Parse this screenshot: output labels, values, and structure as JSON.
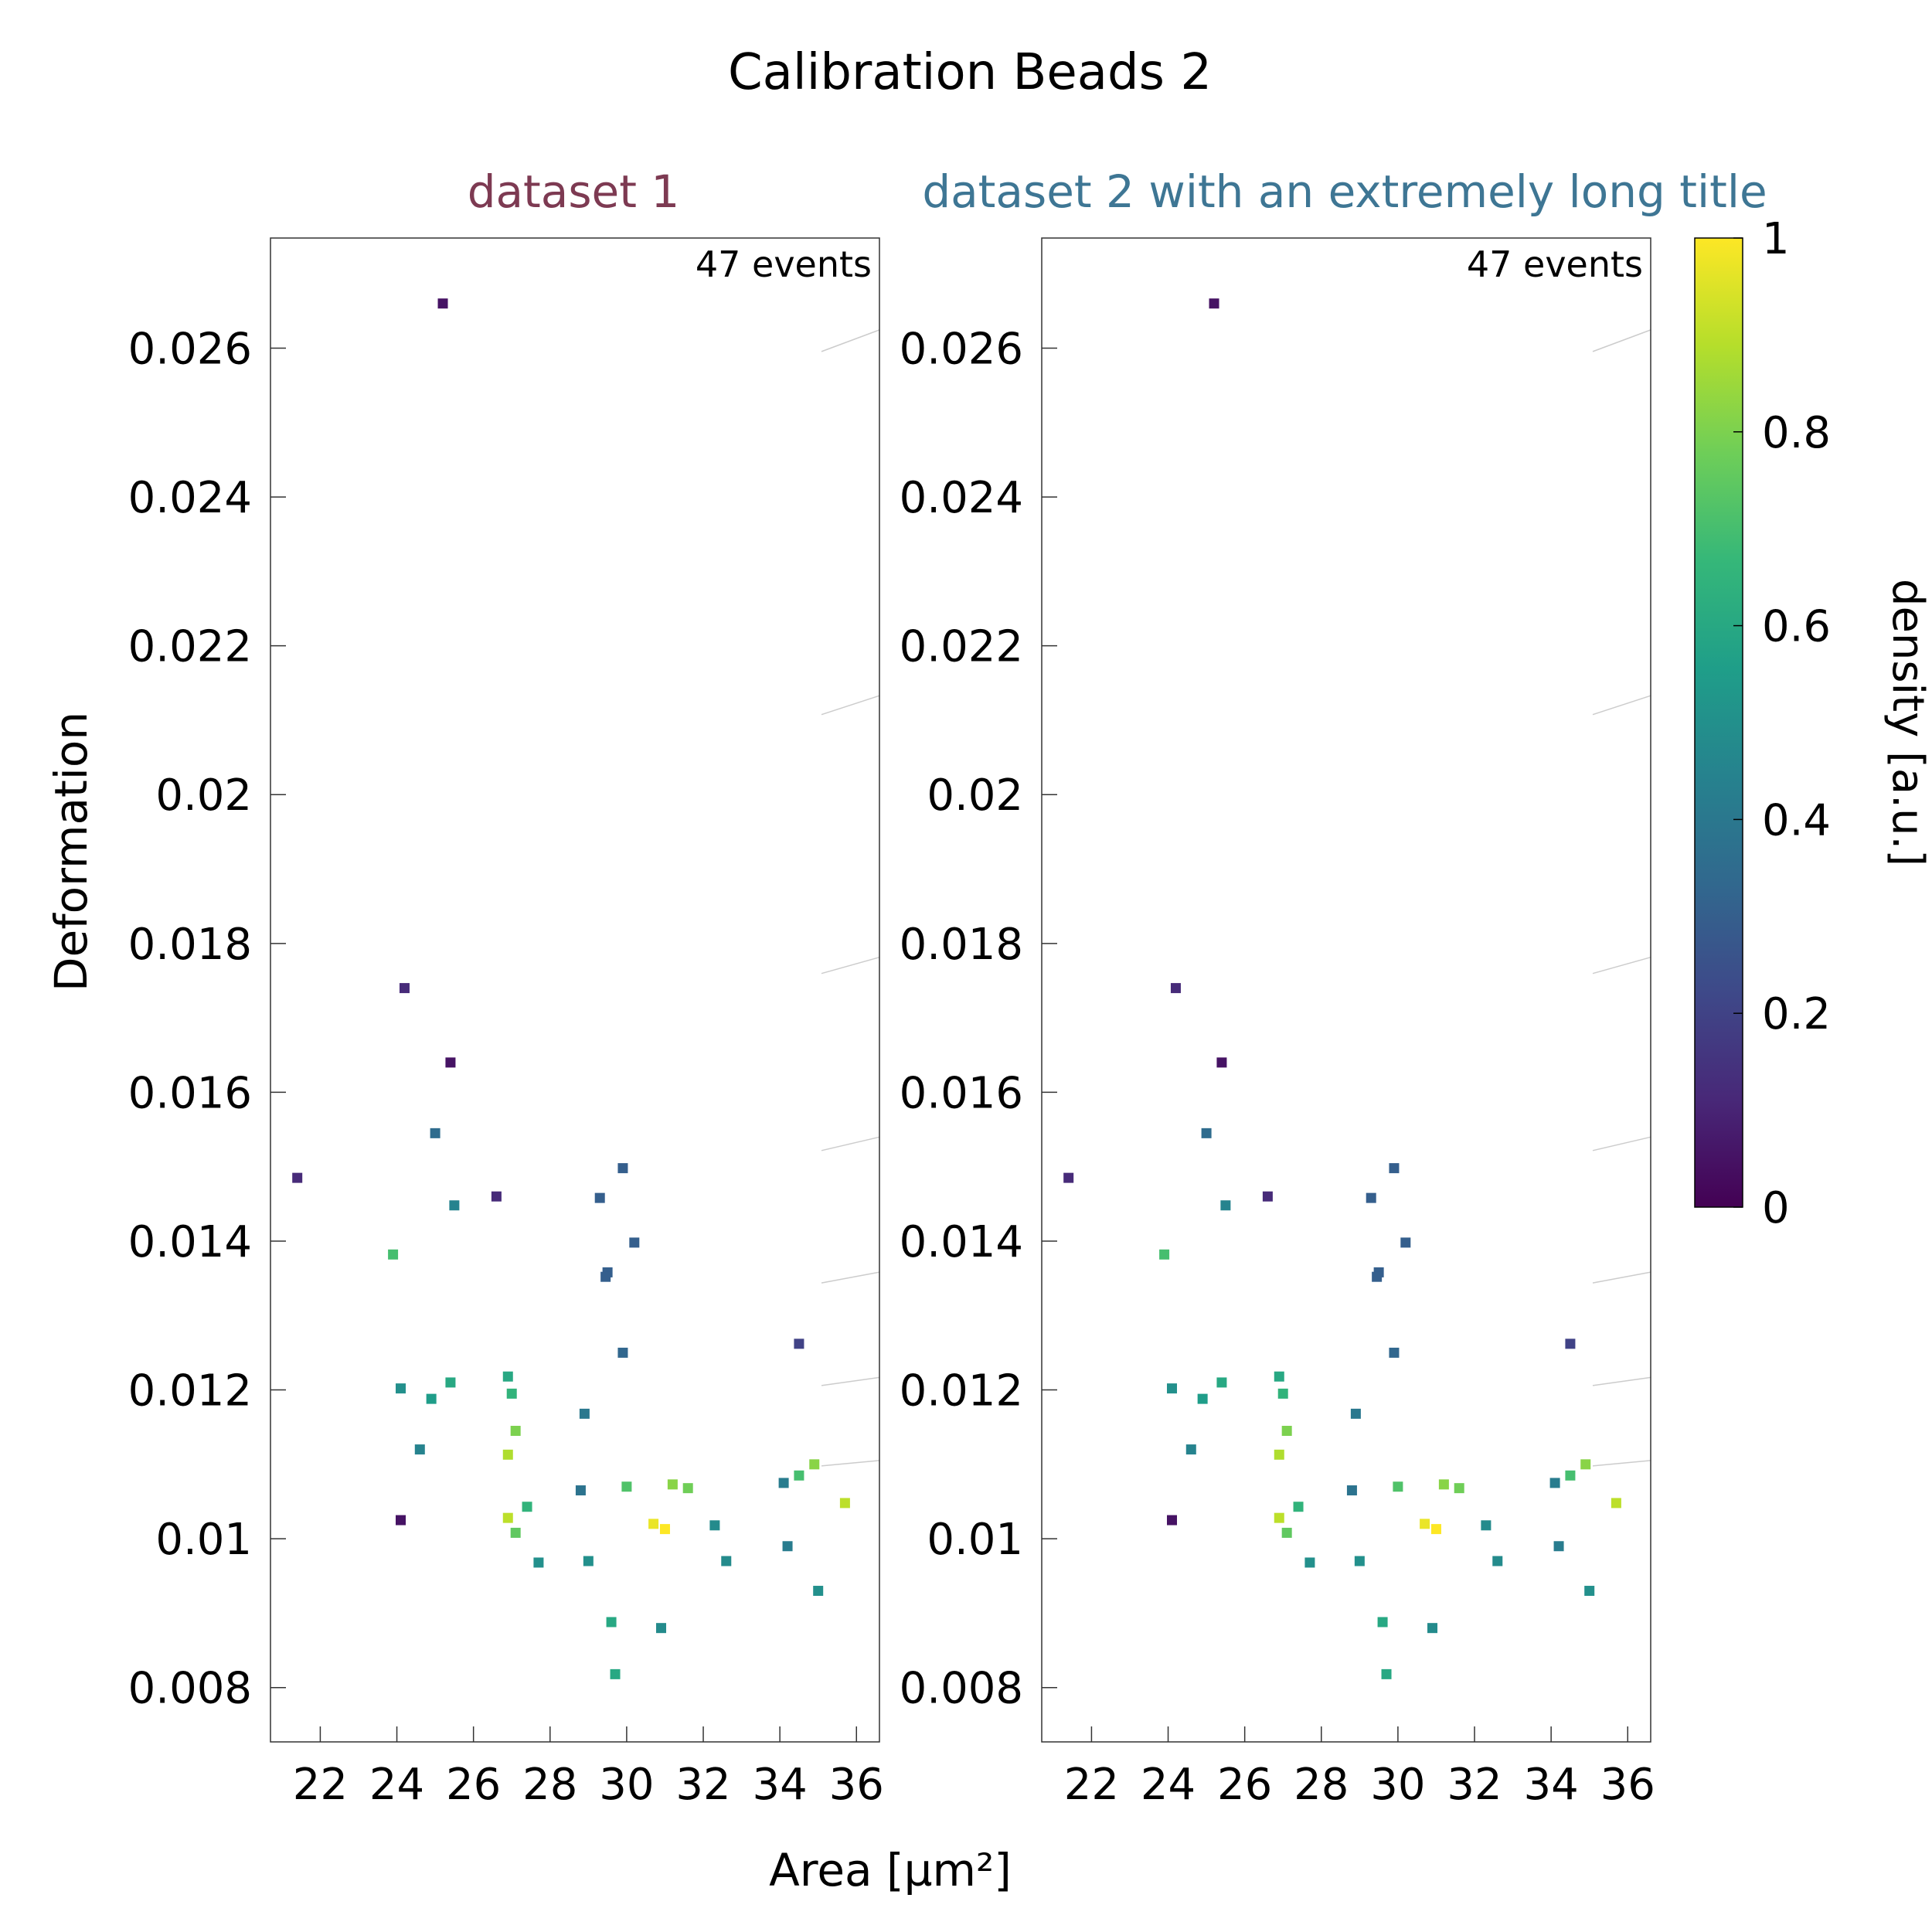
{
  "figure": {
    "title": "Calibration Beads 2",
    "xlabel": "Area [µm²]",
    "ylabel": "Deformation",
    "colorbar": {
      "label": "density [a.u.]",
      "ticks": [
        "0",
        "0.2",
        "0.4",
        "0.6",
        "0.8",
        "1"
      ],
      "colormap": [
        "#440154",
        "#482878",
        "#3e4989",
        "#31688e",
        "#26828e",
        "#1f9e89",
        "#35b779",
        "#6ece58",
        "#b5de2b",
        "#fde725"
      ]
    }
  },
  "chart_data": [
    {
      "type": "scatter",
      "title": "dataset 1",
      "title_color": "#7d3a52",
      "annotation": "47 events",
      "xlim": [
        20.7,
        36.6
      ],
      "ylim": [
        0.00727,
        0.02748
      ],
      "xticks": [
        "22",
        "24",
        "26",
        "28",
        "30",
        "32",
        "34",
        "36"
      ],
      "yticks": [
        "0.008",
        "0.01",
        "0.012",
        "0.014",
        "0.016",
        "0.018",
        "0.02",
        "0.022",
        "0.024",
        "0.026"
      ],
      "points": [
        {
          "x": 25.2,
          "y": 0.0266,
          "d": 0.05
        },
        {
          "x": 24.2,
          "y": 0.0174,
          "d": 0.12
        },
        {
          "x": 25.4,
          "y": 0.0164,
          "d": 0.05
        },
        {
          "x": 25.0,
          "y": 0.01545,
          "d": 0.35
        },
        {
          "x": 21.4,
          "y": 0.01485,
          "d": 0.12
        },
        {
          "x": 26.6,
          "y": 0.0146,
          "d": 0.12
        },
        {
          "x": 25.5,
          "y": 0.01448,
          "d": 0.45
        },
        {
          "x": 29.9,
          "y": 0.01498,
          "d": 0.3
        },
        {
          "x": 29.3,
          "y": 0.01458,
          "d": 0.3
        },
        {
          "x": 30.2,
          "y": 0.01398,
          "d": 0.3
        },
        {
          "x": 29.5,
          "y": 0.01358,
          "d": 0.3
        },
        {
          "x": 29.45,
          "y": 0.01352,
          "d": 0.3
        },
        {
          "x": 23.9,
          "y": 0.01382,
          "d": 0.7
        },
        {
          "x": 34.5,
          "y": 0.01262,
          "d": 0.2
        },
        {
          "x": 29.9,
          "y": 0.0125,
          "d": 0.33
        },
        {
          "x": 24.1,
          "y": 0.01202,
          "d": 0.5
        },
        {
          "x": 24.9,
          "y": 0.01188,
          "d": 0.55
        },
        {
          "x": 25.4,
          "y": 0.0121,
          "d": 0.6
        },
        {
          "x": 26.9,
          "y": 0.01218,
          "d": 0.6
        },
        {
          "x": 27.0,
          "y": 0.01195,
          "d": 0.65
        },
        {
          "x": 27.1,
          "y": 0.01145,
          "d": 0.8
        },
        {
          "x": 26.9,
          "y": 0.01113,
          "d": 0.88
        },
        {
          "x": 24.6,
          "y": 0.0112,
          "d": 0.45
        },
        {
          "x": 28.9,
          "y": 0.01168,
          "d": 0.4
        },
        {
          "x": 28.8,
          "y": 0.01065,
          "d": 0.38
        },
        {
          "x": 27.4,
          "y": 0.01043,
          "d": 0.65
        },
        {
          "x": 26.9,
          "y": 0.01028,
          "d": 0.9
        },
        {
          "x": 27.1,
          "y": 0.01008,
          "d": 0.75
        },
        {
          "x": 24.1,
          "y": 0.01025,
          "d": 0.05
        },
        {
          "x": 27.7,
          "y": 0.00968,
          "d": 0.5
        },
        {
          "x": 29.0,
          "y": 0.0097,
          "d": 0.5
        },
        {
          "x": 30.0,
          "y": 0.0107,
          "d": 0.72
        },
        {
          "x": 31.2,
          "y": 0.01073,
          "d": 0.82
        },
        {
          "x": 31.6,
          "y": 0.01068,
          "d": 0.78
        },
        {
          "x": 30.7,
          "y": 0.0102,
          "d": 0.97
        },
        {
          "x": 31.0,
          "y": 0.01013,
          "d": 1.0
        },
        {
          "x": 32.3,
          "y": 0.01018,
          "d": 0.48
        },
        {
          "x": 32.6,
          "y": 0.0097,
          "d": 0.48
        },
        {
          "x": 29.6,
          "y": 0.00888,
          "d": 0.6
        },
        {
          "x": 30.9,
          "y": 0.0088,
          "d": 0.48
        },
        {
          "x": 29.7,
          "y": 0.00818,
          "d": 0.6
        },
        {
          "x": 34.1,
          "y": 0.01075,
          "d": 0.42
        },
        {
          "x": 34.5,
          "y": 0.01085,
          "d": 0.7
        },
        {
          "x": 34.9,
          "y": 0.011,
          "d": 0.82
        },
        {
          "x": 35.7,
          "y": 0.01048,
          "d": 0.9
        },
        {
          "x": 34.2,
          "y": 0.0099,
          "d": 0.42
        },
        {
          "x": 35.0,
          "y": 0.0093,
          "d": 0.5
        }
      ]
    },
    {
      "type": "scatter",
      "title": "dataset 2 with an extremely long title",
      "title_color": "#3e7694",
      "annotation": "47 events",
      "xlim": [
        20.7,
        36.6
      ],
      "ylim": [
        0.00727,
        0.02748
      ],
      "xticks": [
        "22",
        "24",
        "26",
        "28",
        "30",
        "32",
        "34",
        "36"
      ],
      "yticks": [
        "0.008",
        "0.01",
        "0.012",
        "0.014",
        "0.016",
        "0.018",
        "0.02",
        "0.022",
        "0.024",
        "0.026"
      ],
      "points": [
        {
          "x": 25.2,
          "y": 0.0266,
          "d": 0.05
        },
        {
          "x": 24.2,
          "y": 0.0174,
          "d": 0.12
        },
        {
          "x": 25.4,
          "y": 0.0164,
          "d": 0.05
        },
        {
          "x": 25.0,
          "y": 0.01545,
          "d": 0.35
        },
        {
          "x": 21.4,
          "y": 0.01485,
          "d": 0.12
        },
        {
          "x": 26.6,
          "y": 0.0146,
          "d": 0.12
        },
        {
          "x": 25.5,
          "y": 0.01448,
          "d": 0.45
        },
        {
          "x": 29.9,
          "y": 0.01498,
          "d": 0.3
        },
        {
          "x": 29.3,
          "y": 0.01458,
          "d": 0.3
        },
        {
          "x": 30.2,
          "y": 0.01398,
          "d": 0.3
        },
        {
          "x": 29.5,
          "y": 0.01358,
          "d": 0.3
        },
        {
          "x": 29.45,
          "y": 0.01352,
          "d": 0.3
        },
        {
          "x": 23.9,
          "y": 0.01382,
          "d": 0.7
        },
        {
          "x": 34.5,
          "y": 0.01262,
          "d": 0.2
        },
        {
          "x": 29.9,
          "y": 0.0125,
          "d": 0.33
        },
        {
          "x": 24.1,
          "y": 0.01202,
          "d": 0.5
        },
        {
          "x": 24.9,
          "y": 0.01188,
          "d": 0.55
        },
        {
          "x": 25.4,
          "y": 0.0121,
          "d": 0.6
        },
        {
          "x": 26.9,
          "y": 0.01218,
          "d": 0.6
        },
        {
          "x": 27.0,
          "y": 0.01195,
          "d": 0.65
        },
        {
          "x": 27.1,
          "y": 0.01145,
          "d": 0.8
        },
        {
          "x": 26.9,
          "y": 0.01113,
          "d": 0.88
        },
        {
          "x": 24.6,
          "y": 0.0112,
          "d": 0.45
        },
        {
          "x": 28.9,
          "y": 0.01168,
          "d": 0.4
        },
        {
          "x": 28.8,
          "y": 0.01065,
          "d": 0.38
        },
        {
          "x": 27.4,
          "y": 0.01043,
          "d": 0.65
        },
        {
          "x": 26.9,
          "y": 0.01028,
          "d": 0.9
        },
        {
          "x": 27.1,
          "y": 0.01008,
          "d": 0.75
        },
        {
          "x": 24.1,
          "y": 0.01025,
          "d": 0.05
        },
        {
          "x": 27.7,
          "y": 0.00968,
          "d": 0.5
        },
        {
          "x": 29.0,
          "y": 0.0097,
          "d": 0.5
        },
        {
          "x": 30.0,
          "y": 0.0107,
          "d": 0.72
        },
        {
          "x": 31.2,
          "y": 0.01073,
          "d": 0.82
        },
        {
          "x": 31.6,
          "y": 0.01068,
          "d": 0.78
        },
        {
          "x": 30.7,
          "y": 0.0102,
          "d": 0.97
        },
        {
          "x": 31.0,
          "y": 0.01013,
          "d": 1.0
        },
        {
          "x": 32.3,
          "y": 0.01018,
          "d": 0.48
        },
        {
          "x": 32.6,
          "y": 0.0097,
          "d": 0.48
        },
        {
          "x": 29.6,
          "y": 0.00888,
          "d": 0.6
        },
        {
          "x": 30.9,
          "y": 0.0088,
          "d": 0.48
        },
        {
          "x": 29.7,
          "y": 0.00818,
          "d": 0.6
        },
        {
          "x": 34.1,
          "y": 0.01075,
          "d": 0.42
        },
        {
          "x": 34.5,
          "y": 0.01085,
          "d": 0.7
        },
        {
          "x": 34.9,
          "y": 0.011,
          "d": 0.82
        },
        {
          "x": 35.7,
          "y": 0.01048,
          "d": 0.9
        },
        {
          "x": 34.2,
          "y": 0.0099,
          "d": 0.42
        },
        {
          "x": 35.0,
          "y": 0.0093,
          "d": 0.5
        }
      ]
    }
  ]
}
